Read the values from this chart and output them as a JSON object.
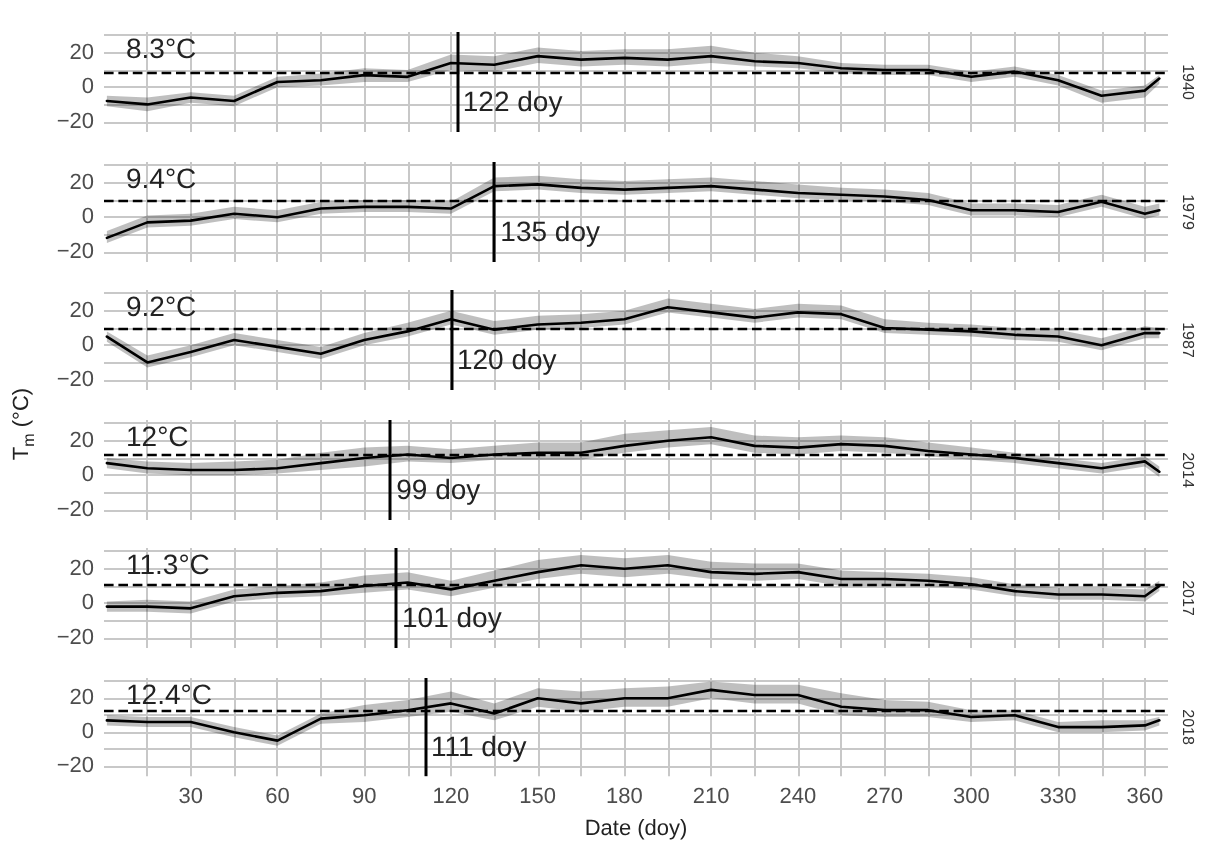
{
  "chart_data": [
    {
      "type": "line",
      "y2label": "1940",
      "x": [
        1,
        15,
        30,
        45,
        60,
        75,
        90,
        105,
        120,
        135,
        150,
        165,
        180,
        195,
        210,
        225,
        240,
        255,
        270,
        285,
        300,
        315,
        330,
        345,
        360,
        365
      ],
      "xlim": [
        0,
        368
      ],
      "ylim": [
        -26,
        32
      ],
      "xticks": [
        {
          "value": 15,
          "label": null
        },
        30,
        {
          "value": 45,
          "label": null
        },
        60,
        {
          "value": 75,
          "label": null
        },
        90,
        {
          "value": 105,
          "label": null
        },
        120,
        {
          "value": 135,
          "label": null
        },
        150,
        {
          "value": 165,
          "label": null
        },
        180,
        {
          "value": 195,
          "label": null
        },
        210,
        {
          "value": 225,
          "label": null
        },
        240,
        {
          "value": 255,
          "label": null
        },
        270,
        {
          "value": 285,
          "label": null
        },
        300,
        {
          "value": 315,
          "label": null
        },
        330,
        {
          "value": 345,
          "label": null
        },
        360
      ],
      "yticks": [
        -20,
        {
          "value": -10,
          "label": null
        },
        0,
        {
          "value": 10,
          "label": null
        },
        20,
        {
          "value": 30,
          "label": null
        }
      ],
      "grid": true,
      "tick_labels": "y",
      "series": [
        {
          "type": "line",
          "color": "#000000",
          "values": [
            -8,
            -10,
            -6,
            -8,
            3,
            4,
            7,
            6,
            14,
            13,
            18,
            16,
            17,
            16,
            18,
            15,
            14,
            11,
            10,
            10,
            6,
            9,
            4,
            -5,
            -2,
            5
          ],
          "lower": [
            -11,
            -14,
            -9,
            -11,
            0,
            1,
            3,
            3,
            10,
            9,
            14,
            12,
            13,
            12,
            14,
            12,
            11,
            8,
            7,
            7,
            3,
            6,
            1,
            -9,
            -6,
            2
          ],
          "upper": [
            -5,
            -6,
            -3,
            -5,
            6,
            8,
            11,
            10,
            19,
            18,
            23,
            21,
            22,
            22,
            24,
            20,
            18,
            14,
            13,
            13,
            9,
            12,
            7,
            -2,
            1,
            7
          ]
        }
      ],
      "ref_lines": [
        {
          "axis": "y",
          "value": 8.3,
          "label": "8.3°C",
          "line_style": "dashed"
        },
        {
          "axis": "x",
          "value": 122,
          "label": "122 doy"
        }
      ]
    },
    {
      "type": "line",
      "y2label": "1979",
      "x": [
        1,
        15,
        30,
        45,
        60,
        75,
        90,
        105,
        120,
        135,
        150,
        165,
        180,
        195,
        210,
        225,
        240,
        255,
        270,
        285,
        300,
        315,
        330,
        345,
        360,
        365
      ],
      "xlim": [
        0,
        368
      ],
      "ylim": [
        -26,
        32
      ],
      "xticks": [
        {
          "value": 15,
          "label": null
        },
        30,
        {
          "value": 45,
          "label": null
        },
        60,
        {
          "value": 75,
          "label": null
        },
        90,
        {
          "value": 105,
          "label": null
        },
        120,
        {
          "value": 135,
          "label": null
        },
        150,
        {
          "value": 165,
          "label": null
        },
        180,
        {
          "value": 195,
          "label": null
        },
        210,
        {
          "value": 225,
          "label": null
        },
        240,
        {
          "value": 255,
          "label": null
        },
        270,
        {
          "value": 285,
          "label": null
        },
        300,
        {
          "value": 315,
          "label": null
        },
        330,
        {
          "value": 345,
          "label": null
        },
        360
      ],
      "yticks": [
        -20,
        {
          "value": -10,
          "label": null
        },
        0,
        {
          "value": 10,
          "label": null
        },
        20,
        {
          "value": 30,
          "label": null
        }
      ],
      "grid": true,
      "tick_labels": "y",
      "series": [
        {
          "type": "line",
          "color": "#000000",
          "values": [
            -12,
            -3,
            -2,
            2,
            0,
            5,
            6,
            6,
            5,
            18,
            19,
            17,
            16,
            17,
            18,
            16,
            14,
            13,
            12,
            10,
            4,
            4,
            3,
            9,
            2,
            4
          ],
          "lower": [
            -15,
            -6,
            -5,
            -1,
            -3,
            2,
            3,
            3,
            2,
            15,
            16,
            14,
            13,
            14,
            15,
            13,
            11,
            10,
            9,
            7,
            1,
            1,
            0,
            6,
            -1,
            1
          ],
          "upper": [
            -8,
            1,
            2,
            6,
            4,
            9,
            10,
            10,
            9,
            23,
            24,
            22,
            21,
            22,
            23,
            21,
            19,
            17,
            16,
            14,
            8,
            8,
            7,
            13,
            6,
            8
          ]
        }
      ],
      "ref_lines": [
        {
          "axis": "y",
          "value": 9.4,
          "label": "9.4°C",
          "line_style": "dashed"
        },
        {
          "axis": "x",
          "value": 135,
          "label": "135 doy"
        }
      ]
    },
    {
      "type": "line",
      "y2label": "1987",
      "x": [
        1,
        15,
        30,
        45,
        60,
        75,
        90,
        105,
        120,
        135,
        150,
        165,
        180,
        195,
        210,
        225,
        240,
        255,
        270,
        285,
        300,
        315,
        330,
        345,
        360,
        365
      ],
      "xlim": [
        0,
        368
      ],
      "ylim": [
        -26,
        32
      ],
      "xticks": [
        {
          "value": 15,
          "label": null
        },
        30,
        {
          "value": 45,
          "label": null
        },
        60,
        {
          "value": 75,
          "label": null
        },
        90,
        {
          "value": 105,
          "label": null
        },
        120,
        {
          "value": 135,
          "label": null
        },
        150,
        {
          "value": 165,
          "label": null
        },
        180,
        {
          "value": 195,
          "label": null
        },
        210,
        {
          "value": 225,
          "label": null
        },
        240,
        {
          "value": 255,
          "label": null
        },
        270,
        {
          "value": 285,
          "label": null
        },
        300,
        {
          "value": 315,
          "label": null
        },
        330,
        {
          "value": 345,
          "label": null
        },
        360
      ],
      "yticks": [
        -20,
        {
          "value": -10,
          "label": null
        },
        0,
        {
          "value": 10,
          "label": null
        },
        20,
        {
          "value": 30,
          "label": null
        }
      ],
      "grid": true,
      "tick_labels": "y",
      "ylabel": "T$_{m}$ (°C)",
      "series": [
        {
          "type": "line",
          "color": "#000000",
          "values": [
            5,
            -10,
            -4,
            3,
            -1,
            -5,
            3,
            8,
            15,
            9,
            12,
            13,
            15,
            22,
            19,
            16,
            19,
            18,
            10,
            9,
            8,
            6,
            5,
            0,
            7,
            7
          ],
          "lower": [
            2,
            -13,
            -7,
            0,
            -4,
            -8,
            0,
            5,
            12,
            6,
            9,
            10,
            12,
            19,
            16,
            13,
            16,
            15,
            7,
            6,
            5,
            3,
            2,
            -3,
            4,
            4
          ],
          "upper": [
            8,
            -6,
            0,
            7,
            3,
            -1,
            7,
            13,
            20,
            14,
            17,
            18,
            20,
            27,
            24,
            21,
            24,
            23,
            15,
            13,
            12,
            10,
            9,
            4,
            11,
            10
          ]
        }
      ],
      "ref_lines": [
        {
          "axis": "y",
          "value": 9.2,
          "label": "9.2°C",
          "line_style": "dashed"
        },
        {
          "axis": "x",
          "value": 120,
          "label": "120 doy"
        }
      ]
    },
    {
      "type": "line",
      "y2label": "2014",
      "x": [
        1,
        15,
        30,
        45,
        60,
        75,
        90,
        105,
        120,
        135,
        150,
        165,
        180,
        195,
        210,
        225,
        240,
        255,
        270,
        285,
        300,
        315,
        330,
        345,
        360,
        365
      ],
      "xlim": [
        0,
        368
      ],
      "ylim": [
        -26,
        32
      ],
      "xticks": [
        {
          "value": 15,
          "label": null
        },
        30,
        {
          "value": 45,
          "label": null
        },
        60,
        {
          "value": 75,
          "label": null
        },
        90,
        {
          "value": 105,
          "label": null
        },
        120,
        {
          "value": 135,
          "label": null
        },
        150,
        {
          "value": 165,
          "label": null
        },
        180,
        {
          "value": 195,
          "label": null
        },
        210,
        {
          "value": 225,
          "label": null
        },
        240,
        {
          "value": 255,
          "label": null
        },
        270,
        {
          "value": 285,
          "label": null
        },
        300,
        {
          "value": 315,
          "label": null
        },
        330,
        {
          "value": 345,
          "label": null
        },
        360
      ],
      "yticks": [
        -20,
        {
          "value": -10,
          "label": null
        },
        0,
        {
          "value": 10,
          "label": null
        },
        20,
        {
          "value": 30,
          "label": null
        }
      ],
      "grid": true,
      "tick_labels": "y",
      "series": [
        {
          "type": "line",
          "color": "#000000",
          "values": [
            7,
            4,
            3,
            3,
            4,
            7,
            10,
            12,
            10,
            12,
            13,
            13,
            17,
            20,
            22,
            17,
            16,
            18,
            17,
            14,
            12,
            10,
            7,
            4,
            8,
            2
          ],
          "lower": [
            4,
            1,
            0,
            0,
            1,
            3,
            5,
            8,
            7,
            9,
            9,
            9,
            13,
            16,
            18,
            13,
            12,
            14,
            13,
            11,
            9,
            7,
            4,
            1,
            5,
            -1
          ],
          "upper": [
            10,
            8,
            7,
            8,
            9,
            13,
            16,
            17,
            15,
            17,
            19,
            19,
            24,
            26,
            28,
            23,
            22,
            23,
            22,
            19,
            16,
            13,
            10,
            7,
            11,
            5
          ]
        }
      ],
      "ref_lines": [
        {
          "axis": "y",
          "value": 12,
          "label": "12°C",
          "line_style": "dashed"
        },
        {
          "axis": "x",
          "value": 99,
          "label": "99 doy"
        }
      ]
    },
    {
      "type": "line",
      "y2label": "2017",
      "x": [
        1,
        15,
        30,
        45,
        60,
        75,
        90,
        105,
        120,
        135,
        150,
        165,
        180,
        195,
        210,
        225,
        240,
        255,
        270,
        285,
        300,
        315,
        330,
        345,
        360,
        365
      ],
      "xlim": [
        0,
        368
      ],
      "ylim": [
        -26,
        32
      ],
      "xticks": [
        {
          "value": 15,
          "label": null
        },
        30,
        {
          "value": 45,
          "label": null
        },
        60,
        {
          "value": 75,
          "label": null
        },
        90,
        {
          "value": 105,
          "label": null
        },
        120,
        {
          "value": 135,
          "label": null
        },
        150,
        {
          "value": 165,
          "label": null
        },
        180,
        {
          "value": 195,
          "label": null
        },
        210,
        {
          "value": 225,
          "label": null
        },
        240,
        {
          "value": 255,
          "label": null
        },
        270,
        {
          "value": 285,
          "label": null
        },
        300,
        {
          "value": 315,
          "label": null
        },
        330,
        {
          "value": 345,
          "label": null
        },
        360
      ],
      "yticks": [
        -20,
        {
          "value": -10,
          "label": null
        },
        0,
        {
          "value": 10,
          "label": null
        },
        20,
        {
          "value": 30,
          "label": null
        }
      ],
      "grid": true,
      "tick_labels": "y",
      "series": [
        {
          "type": "line",
          "color": "#000000",
          "values": [
            -2,
            -2,
            -3,
            4,
            6,
            7,
            10,
            12,
            8,
            13,
            18,
            22,
            20,
            22,
            18,
            17,
            18,
            14,
            14,
            13,
            11,
            7,
            5,
            5,
            4,
            10
          ],
          "lower": [
            -5,
            -5,
            -6,
            1,
            3,
            4,
            6,
            8,
            4,
            9,
            14,
            17,
            15,
            17,
            14,
            13,
            14,
            10,
            10,
            10,
            8,
            4,
            2,
            2,
            1,
            7
          ],
          "upper": [
            1,
            2,
            1,
            8,
            10,
            12,
            16,
            18,
            13,
            19,
            25,
            28,
            26,
            28,
            24,
            23,
            23,
            19,
            18,
            17,
            15,
            11,
            9,
            9,
            8,
            13
          ]
        }
      ],
      "ref_lines": [
        {
          "axis": "y",
          "value": 11.3,
          "label": "11.3°C",
          "line_style": "dashed"
        },
        {
          "axis": "x",
          "value": 101,
          "label": "101 doy"
        }
      ]
    },
    {
      "type": "line",
      "y2label": "2018",
      "x": [
        1,
        15,
        30,
        45,
        60,
        75,
        90,
        105,
        120,
        135,
        150,
        165,
        180,
        195,
        210,
        225,
        240,
        255,
        270,
        285,
        300,
        315,
        330,
        345,
        360,
        365
      ],
      "xlim": [
        0,
        368
      ],
      "ylim": [
        -26,
        32
      ],
      "xticks": [
        {
          "value": 15,
          "label": null
        },
        30,
        {
          "value": 45,
          "label": null
        },
        60,
        {
          "value": 75,
          "label": null
        },
        90,
        {
          "value": 105,
          "label": null
        },
        120,
        {
          "value": 135,
          "label": null
        },
        150,
        {
          "value": 165,
          "label": null
        },
        180,
        {
          "value": 195,
          "label": null
        },
        210,
        {
          "value": 225,
          "label": null
        },
        240,
        {
          "value": 255,
          "label": null
        },
        270,
        {
          "value": 285,
          "label": null
        },
        300,
        {
          "value": 315,
          "label": null
        },
        330,
        {
          "value": 345,
          "label": null
        },
        360
      ],
      "yticks": [
        -20,
        {
          "value": -10,
          "label": null
        },
        0,
        {
          "value": 10,
          "label": null
        },
        20,
        {
          "value": 30,
          "label": null
        }
      ],
      "grid": true,
      "xlabel": "Date (doy)",
      "series": [
        {
          "type": "line",
          "color": "#000000",
          "values": [
            7,
            6,
            6,
            0,
            -5,
            8,
            10,
            13,
            17,
            11,
            20,
            17,
            20,
            20,
            25,
            22,
            22,
            15,
            13,
            13,
            9,
            10,
            3,
            3,
            4,
            7
          ],
          "lower": [
            4,
            3,
            3,
            -3,
            -8,
            5,
            6,
            9,
            12,
            7,
            15,
            12,
            15,
            15,
            20,
            17,
            17,
            10,
            9,
            9,
            6,
            7,
            0,
            0,
            1,
            4
          ],
          "upper": [
            10,
            9,
            9,
            3,
            -2,
            11,
            16,
            19,
            24,
            17,
            26,
            24,
            26,
            27,
            30,
            28,
            28,
            23,
            19,
            18,
            13,
            13,
            6,
            7,
            7,
            9
          ]
        }
      ],
      "ref_lines": [
        {
          "axis": "y",
          "value": 12.4,
          "label": "12.4°C",
          "line_style": "dashed"
        },
        {
          "axis": "x",
          "value": 111,
          "label": "111 doy"
        }
      ]
    }
  ]
}
